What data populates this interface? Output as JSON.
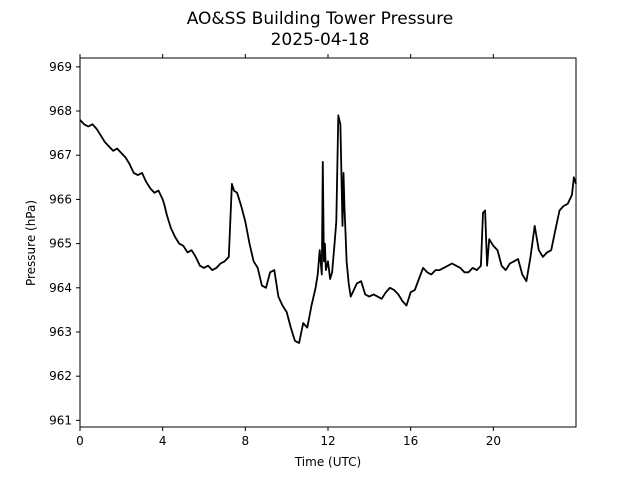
{
  "chart_data": {
    "type": "line",
    "title": "AO&SS Building Tower Pressure",
    "subtitle": "2025-04-18",
    "xlabel": "Time (UTC)",
    "ylabel": "Pressure (hPa)",
    "xlim": [
      0,
      24
    ],
    "ylim": [
      960.85,
      969.2
    ],
    "x_ticks": [
      0,
      4,
      8,
      12,
      16,
      20
    ],
    "x_tick_labels": [
      "0",
      "4",
      "8",
      "12",
      "16",
      "20"
    ],
    "y_ticks": [
      961,
      962,
      963,
      964,
      965,
      966,
      967,
      968,
      969
    ],
    "y_tick_labels": [
      "961",
      "962",
      "963",
      "964",
      "965",
      "966",
      "967",
      "968",
      "969"
    ],
    "grid": false,
    "line_color": "#000000",
    "series": [
      {
        "x": [
          0,
          0.2,
          0.4,
          0.6,
          0.8,
          1.0,
          1.2,
          1.4,
          1.6,
          1.8,
          2.0,
          2.2,
          2.4,
          2.6,
          2.8,
          3.0,
          3.2,
          3.4,
          3.6,
          3.8,
          4.0,
          4.1,
          4.2,
          4.4,
          4.6,
          4.8,
          5.0,
          5.2,
          5.4,
          5.6,
          5.8,
          6.0,
          6.2,
          6.4,
          6.6,
          6.8,
          7.0,
          7.2,
          7.35,
          7.45,
          7.6,
          7.8,
          8.0,
          8.2,
          8.4,
          8.6,
          8.8,
          9.0,
          9.2,
          9.4,
          9.6,
          9.8,
          10.0,
          10.2,
          10.4,
          10.6,
          10.8,
          11.0,
          11.2,
          11.4,
          11.5,
          11.6,
          11.7,
          11.75,
          11.8,
          11.85,
          11.9,
          12.0,
          12.1,
          12.2,
          12.3,
          12.4,
          12.5,
          12.6,
          12.7,
          12.75,
          12.8,
          12.85,
          12.9,
          13.0,
          13.1,
          13.2,
          13.4,
          13.6,
          13.8,
          14.0,
          14.2,
          14.4,
          14.6,
          14.8,
          15.0,
          15.2,
          15.4,
          15.6,
          15.8,
          16.0,
          16.2,
          16.4,
          16.6,
          16.8,
          17.0,
          17.2,
          17.4,
          17.6,
          17.8,
          18.0,
          18.2,
          18.4,
          18.6,
          18.8,
          19.0,
          19.2,
          19.4,
          19.5,
          19.6,
          19.7,
          19.8,
          20.0,
          20.2,
          20.4,
          20.6,
          20.8,
          21.0,
          21.2,
          21.4,
          21.6,
          21.8,
          22.0,
          22.2,
          22.4,
          22.6,
          22.8,
          23.0,
          23.2,
          23.4,
          23.6,
          23.8,
          23.9,
          24.0
        ],
        "y": [
          967.8,
          967.7,
          967.65,
          967.7,
          967.6,
          967.45,
          967.3,
          967.2,
          967.1,
          967.15,
          967.05,
          966.95,
          966.8,
          966.6,
          966.55,
          966.6,
          966.4,
          966.25,
          966.15,
          966.2,
          966.0,
          965.85,
          965.65,
          965.35,
          965.15,
          965.0,
          964.95,
          964.8,
          964.85,
          964.7,
          964.5,
          964.45,
          964.5,
          964.4,
          964.45,
          964.55,
          964.6,
          964.7,
          966.35,
          966.2,
          966.15,
          965.85,
          965.5,
          965.0,
          964.6,
          964.45,
          964.05,
          964.0,
          964.35,
          964.4,
          963.8,
          963.6,
          963.45,
          963.1,
          962.8,
          962.75,
          963.2,
          963.1,
          963.6,
          964.0,
          964.3,
          964.85,
          964.3,
          966.85,
          964.6,
          965.0,
          964.4,
          964.6,
          964.2,
          964.35,
          964.9,
          965.5,
          967.9,
          967.7,
          965.4,
          966.6,
          965.8,
          965.2,
          964.6,
          964.1,
          963.8,
          963.9,
          964.1,
          964.15,
          963.85,
          963.8,
          963.85,
          963.8,
          963.75,
          963.9,
          964.0,
          963.95,
          963.85,
          963.7,
          963.6,
          963.9,
          963.95,
          964.2,
          964.45,
          964.35,
          964.3,
          964.4,
          964.4,
          964.45,
          964.5,
          964.55,
          964.5,
          964.45,
          964.35,
          964.35,
          964.45,
          964.4,
          964.5,
          965.7,
          965.75,
          964.5,
          965.1,
          964.95,
          964.85,
          964.5,
          964.4,
          964.55,
          964.6,
          964.65,
          964.3,
          964.15,
          964.7,
          965.4,
          964.85,
          964.7,
          964.8,
          964.85,
          965.3,
          965.75,
          965.85,
          965.9,
          966.1,
          966.5,
          966.35
        ]
      }
    ]
  }
}
